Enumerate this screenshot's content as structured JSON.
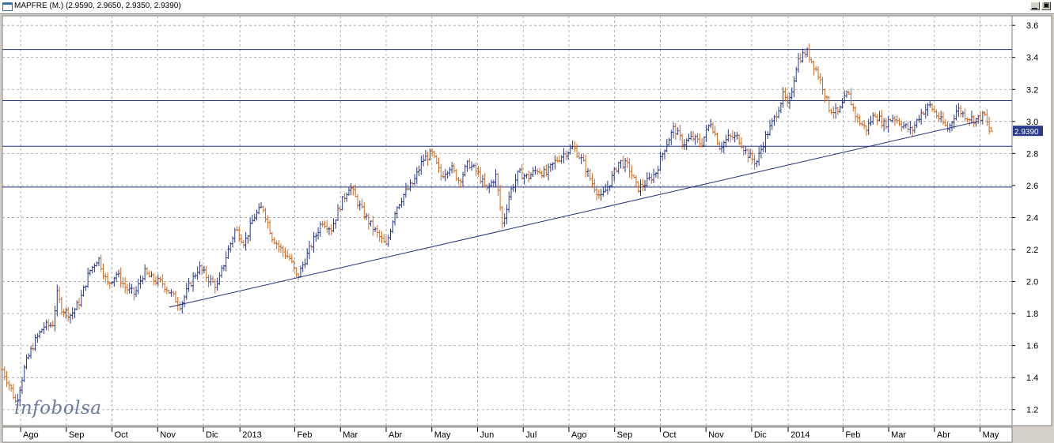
{
  "window": {
    "title": "MAPFRE (M.) (2.9590, 2.9650, 2.9350, 2.9390)",
    "minimize_icon": "minimize-icon",
    "maximize_icon": "maximize-icon"
  },
  "watermark": "infobolsa",
  "chart_data": {
    "type": "ohlc-bar",
    "series_name": "MAPFRE (M.)",
    "last_ohlc": {
      "open": 2.959,
      "high": 2.965,
      "low": 2.935,
      "close": 2.939
    },
    "last_price_label": "2.9390",
    "ylim": [
      1.1,
      3.66
    ],
    "y_ticks": [
      1.2,
      1.4,
      1.6,
      1.8,
      2.0,
      2.2,
      2.4,
      2.6,
      2.8,
      3.0,
      3.2,
      3.4,
      3.6
    ],
    "y_tick_labels": [
      "1.2",
      "1.4",
      "1.6",
      "1.8",
      "2.0",
      "2.2",
      "2.4",
      "2.6",
      "2.8",
      "3.0",
      "3.2",
      "3.4",
      "3.6"
    ],
    "x_labels": [
      "Ago",
      "Sep",
      "Oct",
      "Nov",
      "Dic",
      "2013",
      "Feb",
      "Mar",
      "Abr",
      "May",
      "Jun",
      "Jul",
      "Ago",
      "Sep",
      "Oct",
      "Nov",
      "Dic",
      "2014",
      "Feb",
      "Mar",
      "Abr",
      "May"
    ],
    "x_label_pos": [
      0.2,
      1.2,
      2.2,
      3.2,
      4.2,
      5.0,
      6.2,
      7.2,
      8.2,
      9.2,
      10.2,
      11.2,
      12.2,
      13.2,
      14.2,
      15.2,
      16.2,
      17.0,
      18.2,
      19.2,
      20.2,
      21.2
    ],
    "x_range_months": [
      -0.2,
      21.9
    ],
    "horizontal_lines": [
      3.45,
      3.13,
      2.845,
      2.59
    ],
    "trendline": [
      [
        3.45,
        1.84
      ],
      [
        21.15,
        3.0
      ]
    ],
    "close_path": [
      [
        -0.2,
        1.45
      ],
      [
        0.0,
        1.32
      ],
      [
        0.1,
        1.24
      ],
      [
        0.3,
        1.48
      ],
      [
        0.5,
        1.62
      ],
      [
        0.7,
        1.72
      ],
      [
        0.9,
        1.73
      ],
      [
        1.0,
        1.92
      ],
      [
        1.1,
        1.83
      ],
      [
        1.3,
        1.79
      ],
      [
        1.5,
        1.88
      ],
      [
        1.7,
        2.06
      ],
      [
        1.9,
        2.15
      ],
      [
        2.1,
        1.98
      ],
      [
        2.3,
        2.05
      ],
      [
        2.5,
        1.96
      ],
      [
        2.7,
        1.92
      ],
      [
        2.9,
        2.06
      ],
      [
        3.1,
        2.01
      ],
      [
        3.3,
        1.99
      ],
      [
        3.5,
        1.92
      ],
      [
        3.7,
        1.85
      ],
      [
        3.9,
        1.98
      ],
      [
        4.1,
        2.09
      ],
      [
        4.3,
        2.02
      ],
      [
        4.5,
        1.97
      ],
      [
        4.7,
        2.16
      ],
      [
        4.9,
        2.33
      ],
      [
        5.1,
        2.24
      ],
      [
        5.3,
        2.4
      ],
      [
        5.5,
        2.47
      ],
      [
        5.7,
        2.28
      ],
      [
        5.9,
        2.2
      ],
      [
        6.1,
        2.14
      ],
      [
        6.25,
        2.02
      ],
      [
        6.4,
        2.12
      ],
      [
        6.6,
        2.25
      ],
      [
        6.8,
        2.38
      ],
      [
        7.0,
        2.33
      ],
      [
        7.2,
        2.48
      ],
      [
        7.4,
        2.6
      ],
      [
        7.6,
        2.48
      ],
      [
        7.8,
        2.38
      ],
      [
        8.0,
        2.3
      ],
      [
        8.2,
        2.22
      ],
      [
        8.4,
        2.45
      ],
      [
        8.6,
        2.55
      ],
      [
        8.8,
        2.62
      ],
      [
        9.0,
        2.76
      ],
      [
        9.2,
        2.8
      ],
      [
        9.4,
        2.66
      ],
      [
        9.6,
        2.72
      ],
      [
        9.8,
        2.63
      ],
      [
        10.0,
        2.74
      ],
      [
        10.2,
        2.68
      ],
      [
        10.4,
        2.57
      ],
      [
        10.6,
        2.66
      ],
      [
        10.75,
        2.35
      ],
      [
        10.9,
        2.55
      ],
      [
        11.1,
        2.68
      ],
      [
        11.3,
        2.65
      ],
      [
        11.5,
        2.7
      ],
      [
        11.7,
        2.67
      ],
      [
        11.9,
        2.75
      ],
      [
        12.1,
        2.8
      ],
      [
        12.3,
        2.84
      ],
      [
        12.5,
        2.75
      ],
      [
        12.7,
        2.62
      ],
      [
        12.9,
        2.52
      ],
      [
        13.1,
        2.62
      ],
      [
        13.3,
        2.75
      ],
      [
        13.5,
        2.72
      ],
      [
        13.7,
        2.58
      ],
      [
        13.9,
        2.62
      ],
      [
        14.1,
        2.68
      ],
      [
        14.3,
        2.84
      ],
      [
        14.5,
        2.96
      ],
      [
        14.7,
        2.86
      ],
      [
        14.9,
        2.9
      ],
      [
        15.1,
        2.86
      ],
      [
        15.3,
        3.0
      ],
      [
        15.5,
        2.84
      ],
      [
        15.7,
        2.9
      ],
      [
        15.9,
        2.9
      ],
      [
        16.1,
        2.8
      ],
      [
        16.3,
        2.74
      ],
      [
        16.5,
        2.9
      ],
      [
        16.7,
        3.02
      ],
      [
        16.9,
        3.17
      ],
      [
        17.0,
        3.08
      ],
      [
        17.2,
        3.38
      ],
      [
        17.4,
        3.44
      ],
      [
        17.6,
        3.33
      ],
      [
        17.75,
        3.22
      ],
      [
        17.9,
        3.08
      ],
      [
        18.1,
        3.05
      ],
      [
        18.3,
        3.18
      ],
      [
        18.5,
        3.02
      ],
      [
        18.7,
        2.95
      ],
      [
        18.9,
        3.05
      ],
      [
        19.1,
        2.98
      ],
      [
        19.3,
        3.03
      ],
      [
        19.5,
        2.98
      ],
      [
        19.7,
        2.94
      ],
      [
        19.9,
        3.05
      ],
      [
        20.1,
        3.1
      ],
      [
        20.3,
        3.02
      ],
      [
        20.5,
        2.95
      ],
      [
        20.7,
        3.08
      ],
      [
        20.9,
        3.03
      ],
      [
        21.1,
        3.01
      ],
      [
        21.3,
        3.04
      ],
      [
        21.4,
        2.939
      ]
    ]
  },
  "colors": {
    "plot_bg": "#ffffff",
    "grid": "#a0a0a0",
    "bar_up": "#2a3a8c",
    "bar_down": "#d2691e",
    "hline": "#1f2e78",
    "trendline": "#1f2e78",
    "price_box": "#2a3a8c"
  }
}
